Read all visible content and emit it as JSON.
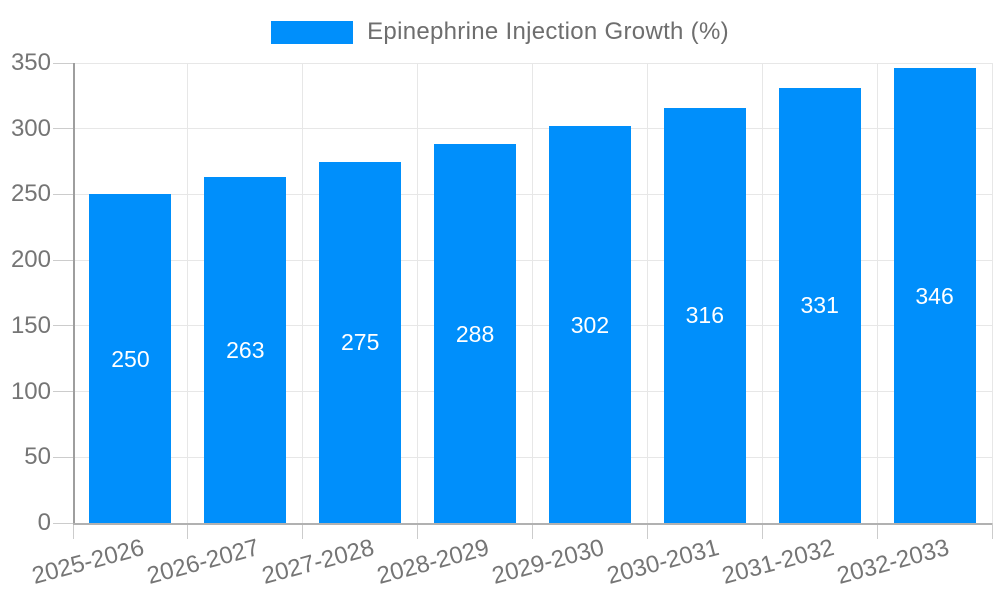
{
  "chart_data": {
    "type": "bar",
    "title": "Epinephrine Injection Growth (%)",
    "legend": {
      "position": "top",
      "items": [
        {
          "label": "Epinephrine Injection Growth (%)",
          "color": "#008FFB"
        }
      ]
    },
    "categories": [
      "2025-2026",
      "2026-2027",
      "2027-2028",
      "2028-2029",
      "2029-2030",
      "2030-2031",
      "2031-2032",
      "2032-2033"
    ],
    "series": [
      {
        "name": "Epinephrine Injection Growth (%)",
        "values": [
          250,
          263,
          275,
          288,
          302,
          316,
          331,
          346
        ]
      }
    ],
    "data_labels": [
      "250",
      "263",
      "275",
      "288",
      "302",
      "316",
      "331",
      "346"
    ],
    "xlabel": "",
    "ylabel": "",
    "ylim": [
      0,
      350
    ],
    "yticks": [
      0,
      50,
      100,
      150,
      200,
      250,
      300,
      350
    ],
    "grid": "on",
    "x_label_rotation_deg": -15,
    "colors": {
      "bar": "#008FFB",
      "data_label": "#ffffff",
      "axis_label": "#757575",
      "legend_text": "#6e6e6e",
      "grid_line": "#e7e7e7",
      "axis_line": "#b1b1b1",
      "tick_line": "#cccccc"
    }
  }
}
